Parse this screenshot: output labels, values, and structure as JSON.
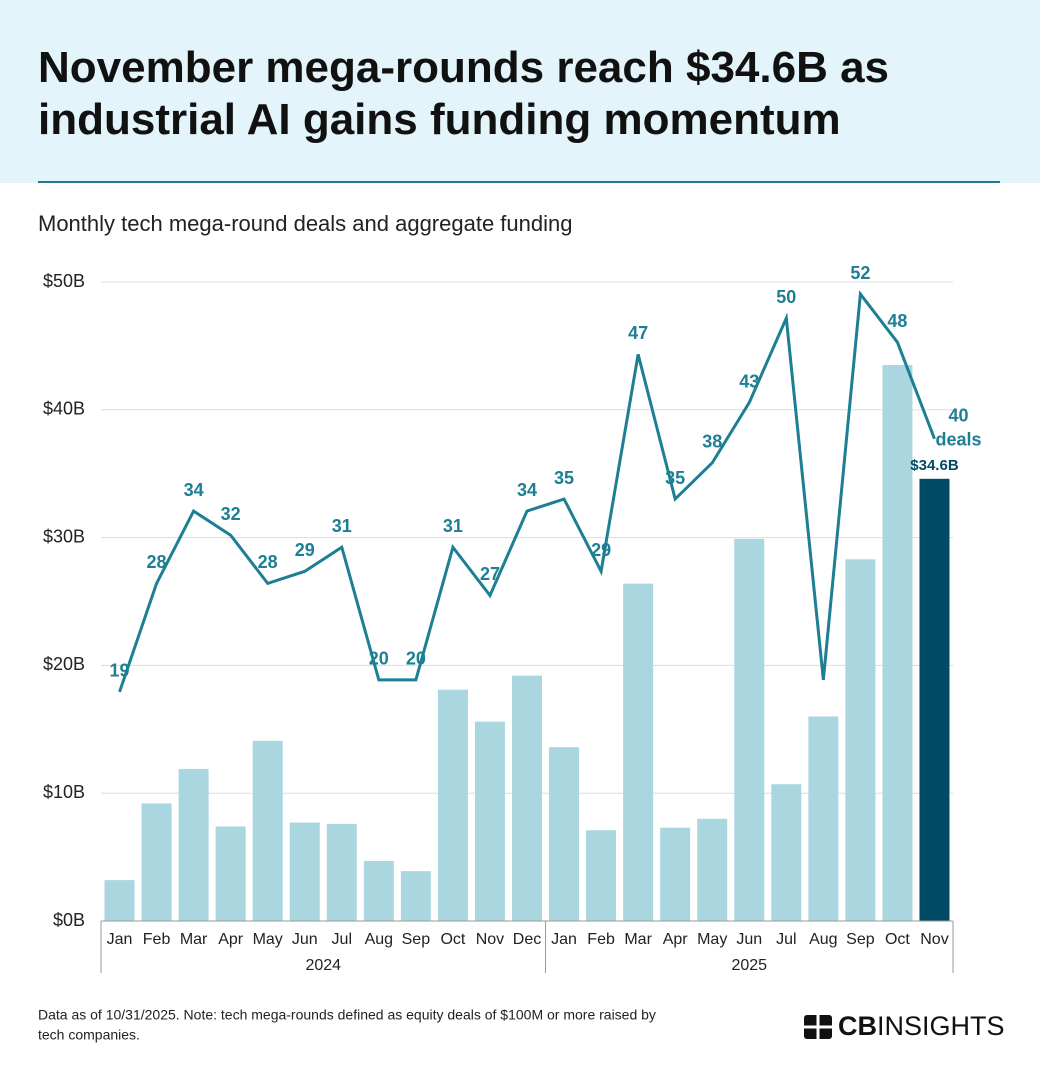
{
  "chart_data": {
    "type": "bar-line",
    "title": "November mega-rounds reach $34.6B as industrial AI gains funding momentum",
    "subtitle": "Monthly tech mega-round deals and aggregate funding",
    "categories": [
      "Jan",
      "Feb",
      "Mar",
      "Apr",
      "May",
      "Jun",
      "Jul",
      "Aug",
      "Sep",
      "Oct",
      "Nov",
      "Dec",
      "Jan",
      "Feb",
      "Mar",
      "Apr",
      "May",
      "Jun",
      "Jul",
      "Aug",
      "Sep",
      "Oct",
      "Nov"
    ],
    "x_groups": [
      {
        "label": "2024",
        "count": 12
      },
      {
        "label": "2025",
        "count": 11
      }
    ],
    "series": [
      {
        "name": "Aggregate funding",
        "type": "bar",
        "values": [
          3.2,
          9.2,
          11.9,
          7.4,
          14.1,
          7.7,
          7.6,
          4.7,
          3.9,
          18.1,
          15.6,
          19.2,
          13.6,
          7.1,
          26.4,
          7.3,
          8.0,
          29.9,
          10.7,
          16.0,
          28.3,
          43.5,
          34.6
        ],
        "value_labels": [
          null,
          null,
          null,
          null,
          null,
          null,
          null,
          null,
          null,
          null,
          null,
          null,
          null,
          null,
          null,
          null,
          null,
          null,
          null,
          null,
          null,
          null,
          "$34.6B"
        ],
        "colors": [
          "#a9d6df",
          "#a9d6df",
          "#a9d6df",
          "#a9d6df",
          "#a9d6df",
          "#a9d6df",
          "#a9d6df",
          "#a9d6df",
          "#a9d6df",
          "#a9d6df",
          "#a9d6df",
          "#a9d6df",
          "#a9d6df",
          "#a9d6df",
          "#a9d6df",
          "#a9d6df",
          "#a9d6df",
          "#a9d6df",
          "#a9d6df",
          "#a9d6df",
          "#a9d6df",
          "#a9d6df",
          "#004a66"
        ]
      },
      {
        "name": "Deals",
        "type": "line",
        "axis": "y2",
        "color": "#1c7f93",
        "values": [
          19,
          28,
          34,
          32,
          28,
          29,
          31,
          20,
          20,
          31,
          27,
          34,
          35,
          29,
          47,
          35,
          38,
          43,
          50,
          20,
          52,
          48,
          40
        ],
        "value_labels": [
          "19",
          "28",
          "34",
          "32",
          "28",
          "29",
          "31",
          "20",
          "20",
          "31",
          "27",
          "34",
          "35",
          "29",
          "47",
          "35",
          "38",
          "43",
          "50",
          null,
          "52",
          "48",
          "40 deals"
        ]
      }
    ],
    "ylim": [
      0,
      50
    ],
    "yticks": [
      {
        "value": 0,
        "label": "$0B"
      },
      {
        "value": 10,
        "label": "$10B"
      },
      {
        "value": 20,
        "label": "$20B"
      },
      {
        "value": 30,
        "label": "$30B"
      },
      {
        "value": 40,
        "label": "$40B"
      },
      {
        "value": 50,
        "label": "$50B"
      }
    ],
    "y2lim": [
      0,
      53
    ],
    "grid": true,
    "footnote": [
      "Data as of 10/31/2025. Note: tech mega-rounds defined as equity deals of $100M or more raised by",
      "tech companies."
    ],
    "logo": {
      "bold": "CB",
      "rest": "INSIGHTS"
    }
  }
}
